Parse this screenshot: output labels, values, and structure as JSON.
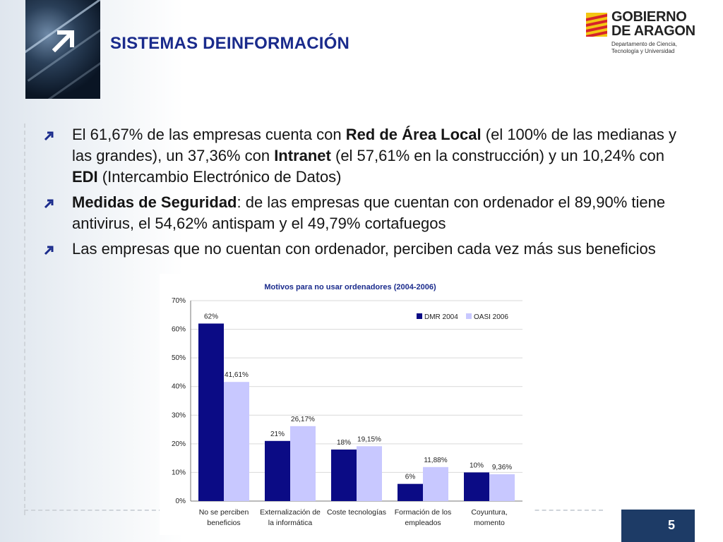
{
  "slide": {
    "title": "SISTEMAS DEINFORMACIÓN",
    "page_number": "5"
  },
  "logo": {
    "line1": "GOBIERNO",
    "line2": "DE ARAGON",
    "dept_line1": "Departamento de Ciencia,",
    "dept_line2": "Tecnología y Universidad",
    "flag_colors": [
      "#d6232a",
      "#f3c613"
    ]
  },
  "bullets": [
    {
      "segments": [
        {
          "text": "El 61,67% de las empresas cuenta con ",
          "bold": false
        },
        {
          "text": "Red de Área Local",
          "bold": true
        },
        {
          "text": " (el 100% de las medianas y las grandes), un 37,36% con ",
          "bold": false
        },
        {
          "text": "Intranet",
          "bold": true
        },
        {
          "text": " (el 57,61% en la construcción) y un 10,24% con ",
          "bold": false
        },
        {
          "text": "EDI",
          "bold": true
        },
        {
          "text": " (Intercambio Electrónico de Datos)",
          "bold": false
        }
      ]
    },
    {
      "segments": [
        {
          "text": "Medidas de Seguridad",
          "bold": true
        },
        {
          "text": ": de las empresas que cuentan con ordenador el 89,90% tiene antivirus, el 54,62% antispam y el 49,79% cortafuegos",
          "bold": false
        }
      ]
    },
    {
      "segments": [
        {
          "text": "Las empresas que no cuentan con ordenador, perciben cada vez más sus beneficios",
          "bold": false
        }
      ]
    }
  ],
  "colors": {
    "title": "#1a2b8c",
    "series_dmr": "#0b0b85",
    "series_oasi": "#c8c8ff",
    "page_box": "#1d3b66"
  },
  "chart_data": {
    "type": "bar",
    "title": "Motivos para no usar ordenadores (2004-2006)",
    "categories": [
      [
        "No se perciben",
        "beneficios"
      ],
      [
        "Externalización de",
        "la informática"
      ],
      [
        "Coste tecnologías"
      ],
      [
        "Formación de los",
        "empleados"
      ],
      [
        "Coyuntura,",
        "momento"
      ]
    ],
    "series": [
      {
        "name": "DMR 2004",
        "values": [
          62,
          21,
          18,
          6,
          10
        ],
        "labels": [
          "62%",
          "21%",
          "18%",
          "6%",
          "10%"
        ]
      },
      {
        "name": "OASI 2006",
        "values": [
          41.61,
          26.17,
          19.15,
          11.88,
          9.36
        ],
        "labels": [
          "41,61%",
          "26,17%",
          "19,15%",
          "11,88%",
          "9,36%"
        ]
      }
    ],
    "ylim": [
      0,
      70
    ],
    "yticks": [
      "0%",
      "10%",
      "20%",
      "30%",
      "40%",
      "50%",
      "60%",
      "70%"
    ],
    "ytick_values": [
      0,
      10,
      20,
      30,
      40,
      50,
      60,
      70
    ],
    "grid": true,
    "legend": "top-right",
    "xlabel": "",
    "ylabel": ""
  }
}
